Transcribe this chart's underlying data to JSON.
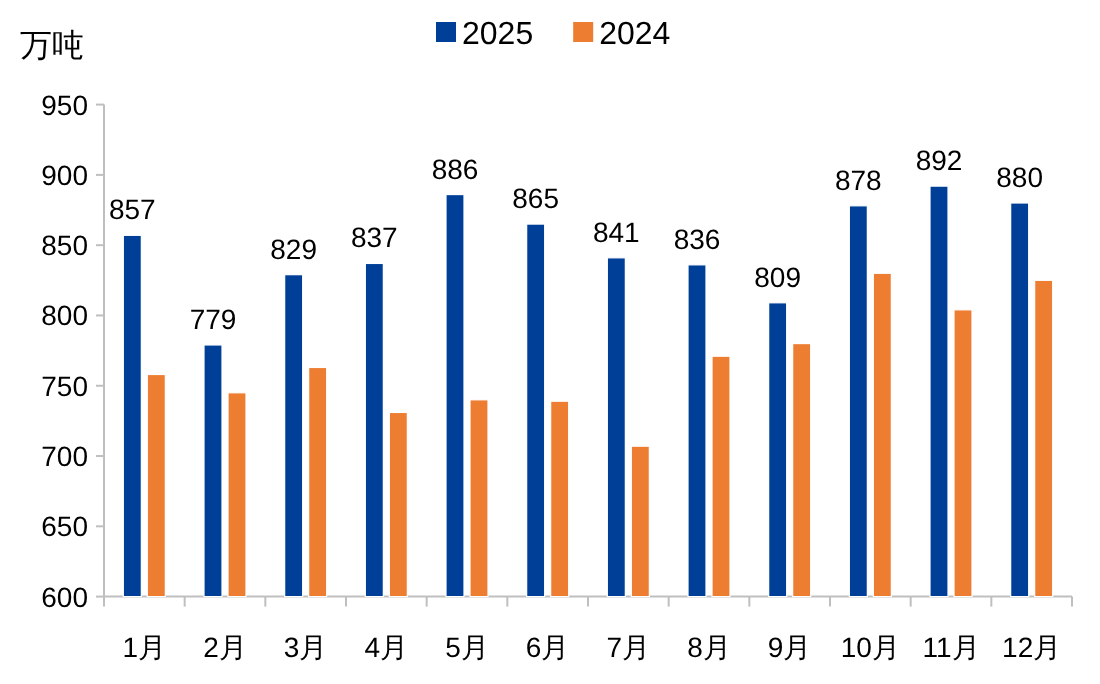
{
  "chart_data": {
    "type": "bar",
    "ylabel": "万吨",
    "categories": [
      "1月",
      "2月",
      "3月",
      "4月",
      "5月",
      "6月",
      "7月",
      "8月",
      "9月",
      "10月",
      "11月",
      "12月"
    ],
    "series": [
      {
        "name": "2025",
        "color": "#003f98",
        "values": [
          857,
          779,
          829,
          837,
          886,
          865,
          841,
          836,
          809,
          878,
          892,
          880
        ],
        "value_labels": [
          "857",
          "779",
          "829",
          "837",
          "886",
          "865",
          "841",
          "836",
          "809",
          "878",
          "892",
          "880"
        ]
      },
      {
        "name": "2024",
        "color": "#ed7d31",
        "values": [
          758,
          745,
          763,
          731,
          740,
          739,
          707,
          771,
          780,
          830,
          804,
          825
        ]
      }
    ],
    "ylim": [
      600,
      950
    ],
    "yticks": [
      600,
      650,
      700,
      750,
      800,
      850,
      900,
      950
    ],
    "legend": "top",
    "grid": false
  }
}
